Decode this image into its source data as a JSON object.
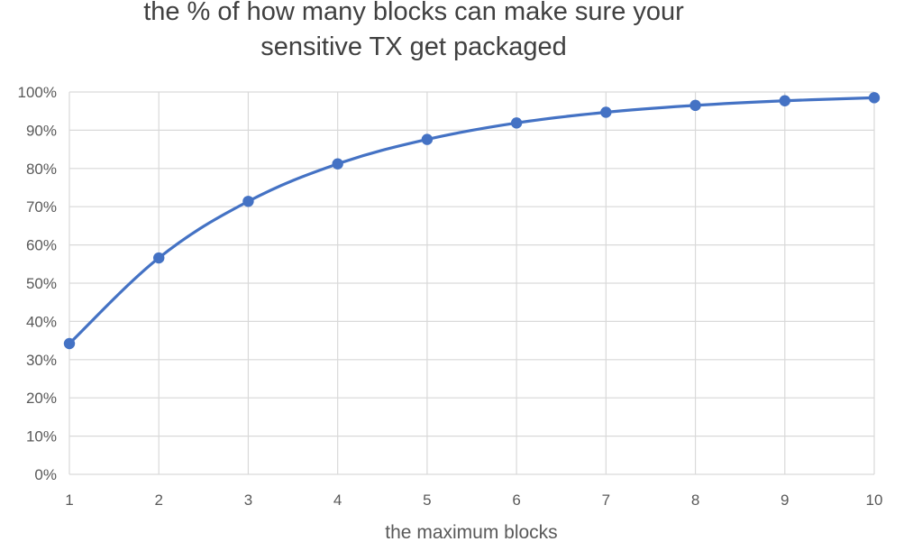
{
  "chart_data": {
    "type": "line",
    "title_lines": [
      "the % of how many blocks can make sure your",
      "sensitive TX get packaged"
    ],
    "xlabel": "the maximum blocks",
    "ylabel": "",
    "x": [
      1,
      2,
      3,
      4,
      5,
      6,
      7,
      8,
      9,
      10
    ],
    "x_tick_labels": [
      "1",
      "2",
      "3",
      "4",
      "5",
      "6",
      "7",
      "8",
      "9",
      "10"
    ],
    "y_tick_labels": [
      "0%",
      "10%",
      "20%",
      "30%",
      "40%",
      "50%",
      "60%",
      "70%",
      "80%",
      "90%",
      "100%"
    ],
    "ylim": [
      0,
      100
    ],
    "y_unit": "percent",
    "grid": true,
    "legend": "none",
    "series": [
      {
        "values": [
          34.2,
          56.6,
          71.4,
          81.2,
          87.6,
          91.9,
          94.7,
          96.5,
          97.7,
          98.5
        ],
        "color": "#4472c4",
        "smooth": true,
        "markers": "circle"
      }
    ]
  }
}
